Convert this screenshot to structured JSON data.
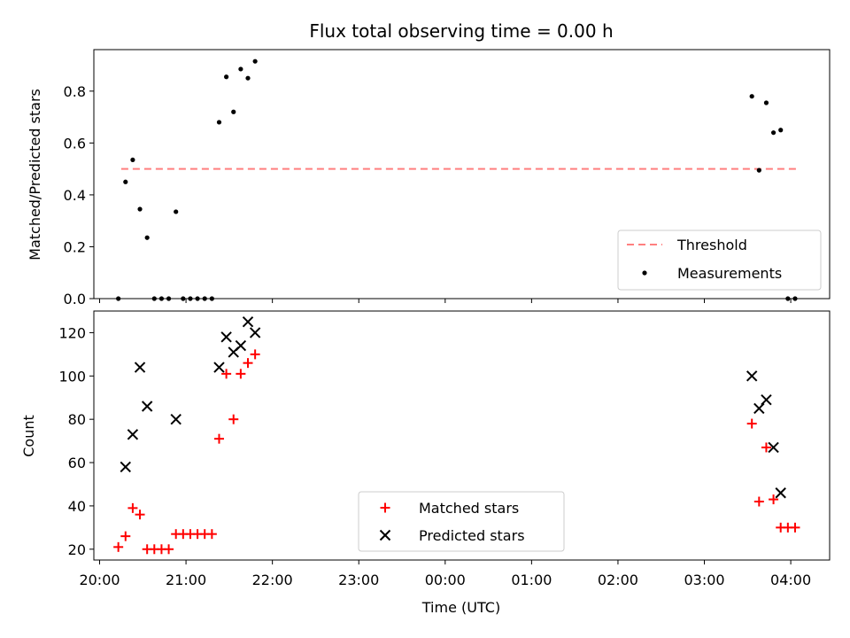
{
  "chart_data": [
    {
      "type": "scatter",
      "title": "Flux total observing time = 0.00 h",
      "xlabel": "",
      "ylabel": "Matched/Predicted stars",
      "ylim": [
        0,
        0.96
      ],
      "yticks": [
        "0.0",
        "0.2",
        "0.4",
        "0.6",
        "0.8"
      ],
      "ytick_values": [
        0,
        0.2,
        0.4,
        0.6,
        0.8
      ],
      "grid": false,
      "legend_position": "lower-right",
      "threshold": {
        "name": "Threshold",
        "y": 0.5,
        "x_start": "20:15",
        "x_end": "04:05",
        "color": "#ff7f7f",
        "style": "dashed"
      },
      "series": [
        {
          "name": "Measurements",
          "color": "#000000",
          "marker": "dot",
          "points": [
            {
              "x": "20:13",
              "y": 0.0
            },
            {
              "x": "20:18",
              "y": 0.45
            },
            {
              "x": "20:23",
              "y": 0.535
            },
            {
              "x": "20:28",
              "y": 0.345
            },
            {
              "x": "20:33",
              "y": 0.235
            },
            {
              "x": "20:38",
              "y": 0.0
            },
            {
              "x": "20:43",
              "y": 0.0
            },
            {
              "x": "20:48",
              "y": 0.0
            },
            {
              "x": "20:53",
              "y": 0.335
            },
            {
              "x": "20:58",
              "y": 0.0
            },
            {
              "x": "21:03",
              "y": 0.0
            },
            {
              "x": "21:08",
              "y": 0.0
            },
            {
              "x": "21:13",
              "y": 0.0
            },
            {
              "x": "21:18",
              "y": 0.0
            },
            {
              "x": "21:23",
              "y": 0.68
            },
            {
              "x": "21:28",
              "y": 0.855
            },
            {
              "x": "21:33",
              "y": 0.72
            },
            {
              "x": "21:38",
              "y": 0.885
            },
            {
              "x": "21:43",
              "y": 0.85
            },
            {
              "x": "21:48",
              "y": 0.915
            },
            {
              "x": "03:33",
              "y": 0.78
            },
            {
              "x": "03:38",
              "y": 0.495
            },
            {
              "x": "03:43",
              "y": 0.755
            },
            {
              "x": "03:48",
              "y": 0.64
            },
            {
              "x": "03:53",
              "y": 0.65
            },
            {
              "x": "03:58",
              "y": 0.0
            },
            {
              "x": "04:03",
              "y": 0.0
            }
          ]
        }
      ]
    },
    {
      "type": "scatter",
      "title": "",
      "xlabel": "Time (UTC)",
      "ylabel": "Count",
      "ylim": [
        15,
        130
      ],
      "yticks": [
        "20",
        "40",
        "60",
        "80",
        "100",
        "120"
      ],
      "ytick_values": [
        20,
        40,
        60,
        80,
        100,
        120
      ],
      "xlim": [
        "19:56",
        "04:27"
      ],
      "xticks": [
        "20:00",
        "21:00",
        "22:00",
        "23:00",
        "00:00",
        "01:00",
        "02:00",
        "03:00",
        "04:00"
      ],
      "grid": false,
      "legend_position": "lower-center",
      "series": [
        {
          "name": "Matched stars",
          "color": "#ff0000",
          "marker": "plus",
          "points": [
            {
              "x": "20:13",
              "y": 21
            },
            {
              "x": "20:18",
              "y": 26
            },
            {
              "x": "20:23",
              "y": 39
            },
            {
              "x": "20:28",
              "y": 36
            },
            {
              "x": "20:33",
              "y": 20
            },
            {
              "x": "20:38",
              "y": 20
            },
            {
              "x": "20:43",
              "y": 20
            },
            {
              "x": "20:48",
              "y": 20
            },
            {
              "x": "20:53",
              "y": 27
            },
            {
              "x": "20:58",
              "y": 27
            },
            {
              "x": "21:03",
              "y": 27
            },
            {
              "x": "21:08",
              "y": 27
            },
            {
              "x": "21:13",
              "y": 27
            },
            {
              "x": "21:18",
              "y": 27
            },
            {
              "x": "21:23",
              "y": 71
            },
            {
              "x": "21:28",
              "y": 101
            },
            {
              "x": "21:33",
              "y": 80
            },
            {
              "x": "21:38",
              "y": 101
            },
            {
              "x": "21:43",
              "y": 106
            },
            {
              "x": "21:48",
              "y": 110
            },
            {
              "x": "03:33",
              "y": 78
            },
            {
              "x": "03:38",
              "y": 42
            },
            {
              "x": "03:43",
              "y": 67
            },
            {
              "x": "03:48",
              "y": 43
            },
            {
              "x": "03:53",
              "y": 30
            },
            {
              "x": "03:58",
              "y": 30
            },
            {
              "x": "04:03",
              "y": 30
            }
          ]
        },
        {
          "name": "Predicted stars",
          "color": "#000000",
          "marker": "x",
          "points": [
            {
              "x": "20:18",
              "y": 58
            },
            {
              "x": "20:23",
              "y": 73
            },
            {
              "x": "20:28",
              "y": 104
            },
            {
              "x": "20:33",
              "y": 86
            },
            {
              "x": "20:53",
              "y": 80
            },
            {
              "x": "21:23",
              "y": 104
            },
            {
              "x": "21:28",
              "y": 118
            },
            {
              "x": "21:33",
              "y": 111
            },
            {
              "x": "21:38",
              "y": 114
            },
            {
              "x": "21:43",
              "y": 125
            },
            {
              "x": "21:48",
              "y": 120
            },
            {
              "x": "03:33",
              "y": 100
            },
            {
              "x": "03:38",
              "y": 85
            },
            {
              "x": "03:43",
              "y": 89
            },
            {
              "x": "03:48",
              "y": 67
            },
            {
              "x": "03:53",
              "y": 46
            }
          ]
        }
      ]
    }
  ]
}
